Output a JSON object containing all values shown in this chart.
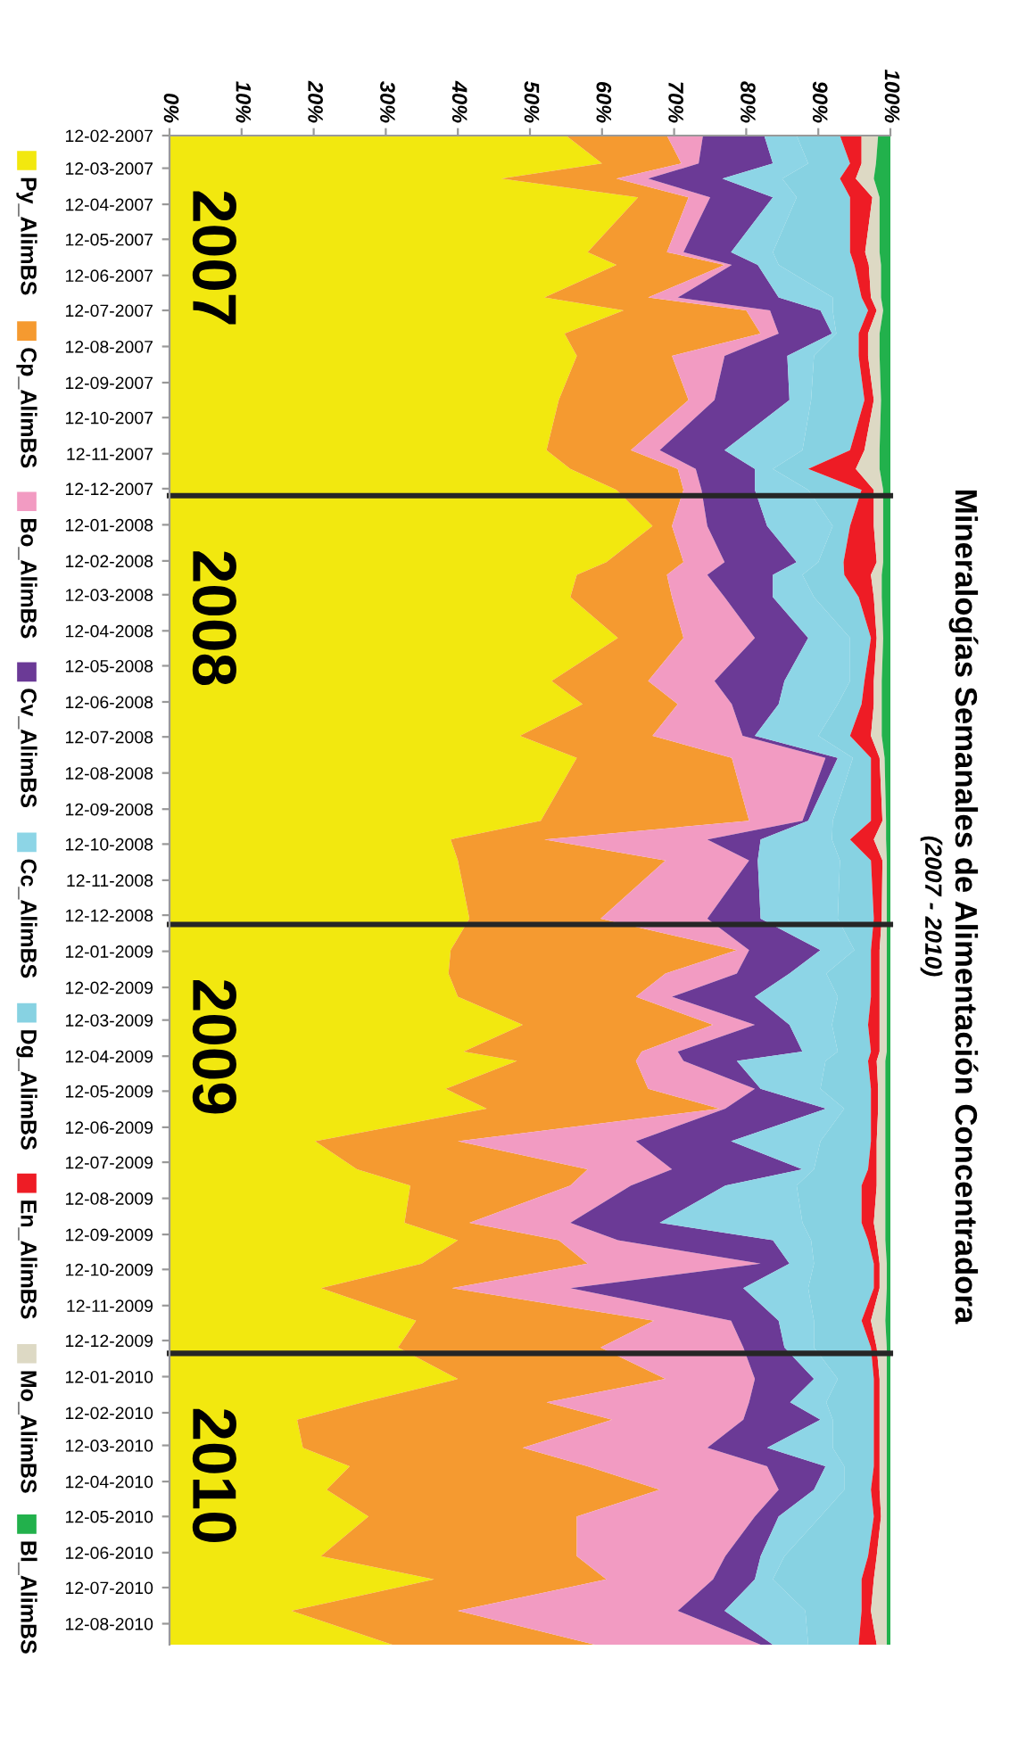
{
  "chart_data": {
    "type": "area",
    "title": "Mineralogías Semanales de Alimentación Concentradora",
    "subtitle": "(2007 - 2010)",
    "orientation": "horizontal",
    "stacked": true,
    "legend": "left",
    "grid": false,
    "annotations": [
      "2007",
      "2008",
      "2009",
      "2010"
    ],
    "x": [
      "2007-02-12",
      "2007-03-08",
      "2007-03-21",
      "2007-04-06",
      "2007-05-23",
      "2007-06-03",
      "2007-07-01",
      "2007-07-12",
      "2007-08-01",
      "2007-08-20",
      "2007-09-27",
      "2007-11-09",
      "2007-11-25",
      "2007-12-13",
      "2008-01-13",
      "2008-02-13",
      "2008-02-24",
      "2008-03-14",
      "2008-04-18",
      "2008-05-25",
      "2008-06-14",
      "2008-07-11",
      "2008-07-30",
      "2008-09-22",
      "2008-10-08",
      "2008-10-26",
      "2008-12-15",
      "2009-01-11",
      "2009-01-31",
      "2009-02-20",
      "2009-03-16",
      "2009-04-08",
      "2009-04-16",
      "2009-05-10",
      "2009-05-27",
      "2009-06-24",
      "2009-07-18",
      "2009-08-01",
      "2009-09-02",
      "2009-09-17",
      "2009-10-07",
      "2009-10-28",
      "2009-11-25",
      "2009-12-18",
      "2010-01-14",
      "2010-02-03",
      "2010-02-18",
      "2010-03-14",
      "2010-03-30",
      "2010-04-19",
      "2010-05-12",
      "2010-06-15",
      "2010-07-05",
      "2010-08-01",
      "2010-08-30"
    ],
    "series": [
      {
        "name": "Py_AlimBS",
        "color": "#f2e80f",
        "values": [
          55,
          60,
          46,
          65,
          58,
          62,
          52,
          63,
          54.8,
          56.5,
          54,
          52.3,
          55.6,
          62,
          67,
          60.6,
          56.5,
          55.6,
          62.2,
          53,
          57.3,
          48.6,
          56.5,
          51.5,
          39,
          40,
          41.6,
          39,
          38.7,
          40,
          49,
          40.8,
          48.2,
          38.3,
          44,
          20.2,
          26,
          33.4,
          32.6,
          40,
          35,
          21,
          34.2,
          31.7,
          40,
          26.8,
          17.7,
          18.5,
          25,
          21.8,
          27.6,
          21,
          36.7,
          16.9,
          30.9
        ]
      },
      {
        "name": "Cp_AlimBS",
        "color": "#f59a30",
        "values": [
          14,
          11,
          16,
          7,
          11,
          15,
          14.4,
          17,
          27.2,
          13.2,
          18,
          11.7,
          14.9,
          9.3,
          2.7,
          10.7,
          12.5,
          14.1,
          9.1,
          13.4,
          13.2,
          18.4,
          21.5,
          28.9,
          13,
          28.8,
          18.2,
          39.7,
          30.1,
          24.7,
          26.4,
          24.7,
          16.5,
          28.1,
          32.3,
          19.8,
          32,
          22.2,
          9,
          14,
          23,
          18.2,
          33,
          28.1,
          28.8,
          25.5,
          43.7,
          30.5,
          33,
          46.2,
          28.9,
          35.5,
          23.9,
          23.1,
          28.1
        ]
      },
      {
        "name": "Bo_AlimBS",
        "color": "#f29bc2",
        "values": [
          5,
          2.4,
          4.4,
          3,
          2.3,
          1,
          4.1,
          3.3,
          2.5,
          7.3,
          3.6,
          4,
          2.5,
          2.5,
          4.9,
          5.7,
          5.6,
          7.3,
          9.9,
          9.2,
          7.5,
          12.5,
          13,
          7.4,
          22.6,
          11.6,
          14.8,
          1.7,
          9.9,
          5,
          5.8,
          5,
          6.6,
          14.8,
          0.8,
          24.7,
          11.7,
          8.4,
          14,
          8.2,
          24,
          16.4,
          10.7,
          19.8,
          12.4,
          28.1,
          18.2,
          25.6,
          24.9,
          16.5,
          24.7,
          20.6,
          14.8,
          30.5,
          23
        ]
      },
      {
        "name": "Cv_AlimBS",
        "color": "#6b3a96",
        "values": [
          8.5,
          10.3,
          10.3,
          8.7,
          6.6,
          3.6,
          14,
          7,
          7.4,
          8.7,
          10.4,
          9,
          8.2,
          7.4,
          8.3,
          10,
          9.1,
          6.7,
          7.4,
          9.7,
          6.5,
          1.7,
          1.7,
          0.8,
          7.4,
          1.2,
          7.4,
          9.9,
          7.3,
          11.5,
          4.8,
          17.3,
          7.4,
          0.8,
          14,
          13.2,
          18.1,
          13.1,
          12.4,
          21.5,
          4,
          24,
          6.6,
          5.7,
          8.2,
          5.7,
          10.7,
          8.3,
          8.1,
          4.9,
          3.3,
          4.9,
          5.8,
          6.5,
          1.7
        ]
      },
      {
        "name": "Cc_AlimBS",
        "color": "#8dd5e6",
        "values": [
          4.5,
          4.9,
          8.3,
          3.3,
          5.8,
          2.9,
          7.5,
          1.7,
          0.6,
          3.7,
          3,
          10.8,
          2.5,
          7.4,
          9.1,
          3,
          4.1,
          5.7,
          5.8,
          9.1,
          8.2,
          8.8,
          2.1,
          3.4,
          9.9,
          11.4,
          10.7,
          4.7,
          5.1,
          11.5,
          5.9,
          4.9,
          12.3,
          8.3,
          2.5,
          12.4,
          1.6,
          9.9,
          19.8,
          5.3,
          3.4,
          9,
          4.9,
          4.1,
          3.3,
          5,
          1.7,
          9.1,
          2.6,
          4.2,
          5.8,
          3.3,
          2.5,
          11.2,
          4.9
        ]
      },
      {
        "name": "Dg_AlimBS",
        "color": "#87d2e2",
        "values": [
          6,
          5.8,
          8,
          7.4,
          10.7,
          10.5,
          4,
          4.9,
          3.1,
          6.2,
          7.4,
          6.6,
          4.9,
          7.4,
          2.4,
          3.5,
          5.8,
          6.2,
          2.9,
          2,
          3.3,
          4.4,
          2.5,
          5.3,
          2.5,
          4.3,
          5,
          2.3,
          6.2,
          4.6,
          5,
          4.6,
          5.9,
          7,
          3.7,
          7,
          7.5,
          9,
          8.2,
          7.9,
          8.3,
          9.1,
          6.6,
          7.9,
          5,
          6.6,
          5.7,
          5.7,
          4.1,
          3.7,
          7.4,
          11.6,
          12.3,
          7.8,
          7
        ]
      },
      {
        "name": "En_AlimBS",
        "color": "#ee1c25",
        "values": [
          3,
          1.6,
          2.2,
          3.1,
          2.1,
          2,
          1.3,
          1.2,
          1.3,
          1.3,
          1.3,
          2,
          6.6,
          1.7,
          3.3,
          4.6,
          3.7,
          2.1,
          0.8,
          1.3,
          1.7,
          2.9,
          1.2,
          1.6,
          3.3,
          1.6,
          1.1,
          1.2,
          1.2,
          1.2,
          1.6,
          1.2,
          1.2,
          1,
          1,
          0.8,
          1.2,
          2.1,
          1.7,
          1.2,
          0.8,
          0.8,
          1.3,
          0.8,
          0.8,
          0.8,
          0.8,
          0.8,
          0.8,
          1.2,
          1,
          1.2,
          1.7,
          1.3,
          2.5
        ]
      },
      {
        "name": "Mo_AlimBS",
        "color": "#ddd9c4",
        "values": [
          2.3,
          2,
          2.5,
          1,
          2,
          1.7,
          1.4,
          0.9,
          1.6,
          1.6,
          1,
          2.1,
          3.3,
          1.3,
          1.3,
          0.9,
          1.5,
          1.1,
          0.9,
          1.1,
          1.1,
          1.5,
          0.7,
          0.5,
          1.7,
          0.6,
          0.7,
          1,
          1,
          1,
          1,
          1,
          1.2,
          1,
          1,
          1.2,
          1.2,
          1.2,
          1.6,
          1.2,
          1,
          1,
          2,
          1.4,
          1,
          1,
          1,
          1,
          1,
          1,
          0.8,
          1.4,
          1.8,
          2.2,
          1.4
        ]
      },
      {
        "name": "Bl_AlimBS",
        "color": "#22b14c",
        "values": [
          1.7,
          2,
          2.3,
          1.5,
          1.5,
          1.3,
          1.3,
          1,
          1.5,
          1.5,
          1.3,
          1.5,
          1.5,
          1,
          1,
          1,
          1.2,
          1.2,
          1,
          1.2,
          1.2,
          1.2,
          0.8,
          0.6,
          0.6,
          0.5,
          0.5,
          0.5,
          0.5,
          0.5,
          0.5,
          0.5,
          0.7,
          0.7,
          0.7,
          0.7,
          0.7,
          0.7,
          0.7,
          0.7,
          0.5,
          0.5,
          0.7,
          0.5,
          0.5,
          0.5,
          0.5,
          0.5,
          0.5,
          0.5,
          0.5,
          0.5,
          0.5,
          0.5,
          0.5
        ]
      }
    ],
    "xlim": [
      0,
      100
    ],
    "xticks": [
      {
        "value": 0,
        "label": "0%"
      },
      {
        "value": 10,
        "label": "10%"
      },
      {
        "value": 20,
        "label": "20%"
      },
      {
        "value": 30,
        "label": "30%"
      },
      {
        "value": 40,
        "label": "40%"
      },
      {
        "value": 50,
        "label": "50%"
      },
      {
        "value": 60,
        "label": "60%"
      },
      {
        "value": 70,
        "label": "70%"
      },
      {
        "value": 80,
        "label": "80%"
      },
      {
        "value": 90,
        "label": "90%"
      },
      {
        "value": 100,
        "label": "100%"
      }
    ],
    "ylim": [
      "2010-08-30",
      "2007-02-12"
    ],
    "yticks": [
      {
        "value": "2007-02-12",
        "label": "12-02-2007"
      },
      {
        "value": "2007-03-12",
        "label": "12-03-2007"
      },
      {
        "value": "2007-04-12",
        "label": "12-04-2007"
      },
      {
        "value": "2007-05-12",
        "label": "12-05-2007"
      },
      {
        "value": "2007-06-12",
        "label": "12-06-2007"
      },
      {
        "value": "2007-07-12",
        "label": "12-07-2007"
      },
      {
        "value": "2007-08-12",
        "label": "12-08-2007"
      },
      {
        "value": "2007-09-12",
        "label": "12-09-2007"
      },
      {
        "value": "2007-10-12",
        "label": "12-10-2007"
      },
      {
        "value": "2007-11-12",
        "label": "12-11-2007"
      },
      {
        "value": "2007-12-12",
        "label": "12-12-2007"
      },
      {
        "value": "2008-01-12",
        "label": "12-01-2008"
      },
      {
        "value": "2008-02-12",
        "label": "12-02-2008"
      },
      {
        "value": "2008-03-12",
        "label": "12-03-2008"
      },
      {
        "value": "2008-04-12",
        "label": "12-04-2008"
      },
      {
        "value": "2008-05-12",
        "label": "12-05-2008"
      },
      {
        "value": "2008-06-12",
        "label": "12-06-2008"
      },
      {
        "value": "2008-07-12",
        "label": "12-07-2008"
      },
      {
        "value": "2008-08-12",
        "label": "12-08-2008"
      },
      {
        "value": "2008-09-12",
        "label": "12-09-2008"
      },
      {
        "value": "2008-10-12",
        "label": "12-10-2008"
      },
      {
        "value": "2008-11-12",
        "label": "12-11-2008"
      },
      {
        "value": "2008-12-12",
        "label": "12-12-2008"
      },
      {
        "value": "2009-01-12",
        "label": "12-01-2009"
      },
      {
        "value": "2009-02-12",
        "label": "12-02-2009"
      },
      {
        "value": "2009-03-12",
        "label": "12-03-2009"
      },
      {
        "value": "2009-04-12",
        "label": "12-04-2009"
      },
      {
        "value": "2009-05-12",
        "label": "12-05-2009"
      },
      {
        "value": "2009-06-12",
        "label": "12-06-2009"
      },
      {
        "value": "2009-07-12",
        "label": "12-07-2009"
      },
      {
        "value": "2009-08-12",
        "label": "12-08-2009"
      },
      {
        "value": "2009-09-12",
        "label": "12-09-2009"
      },
      {
        "value": "2009-10-12",
        "label": "12-10-2009"
      },
      {
        "value": "2009-11-12",
        "label": "12-11-2009"
      },
      {
        "value": "2009-12-12",
        "label": "12-12-2009"
      },
      {
        "value": "2010-01-12",
        "label": "12-01-2010"
      },
      {
        "value": "2010-02-12",
        "label": "12-02-2010"
      },
      {
        "value": "2010-03-12",
        "label": "12-03-2010"
      },
      {
        "value": "2010-04-12",
        "label": "12-04-2010"
      },
      {
        "value": "2010-05-12",
        "label": "12-05-2010"
      },
      {
        "value": "2010-06-12",
        "label": "12-06-2010"
      },
      {
        "value": "2010-07-12",
        "label": "12-07-2010"
      },
      {
        "value": "2010-08-12",
        "label": "12-08-2010"
      }
    ],
    "ref_lines": [
      {
        "axis": "y",
        "value": "2007-12-18",
        "color": "#262626"
      },
      {
        "axis": "y",
        "value": "2008-12-20",
        "color": "#262626"
      },
      {
        "axis": "y",
        "value": "2009-12-23",
        "color": "#262626"
      }
    ]
  }
}
